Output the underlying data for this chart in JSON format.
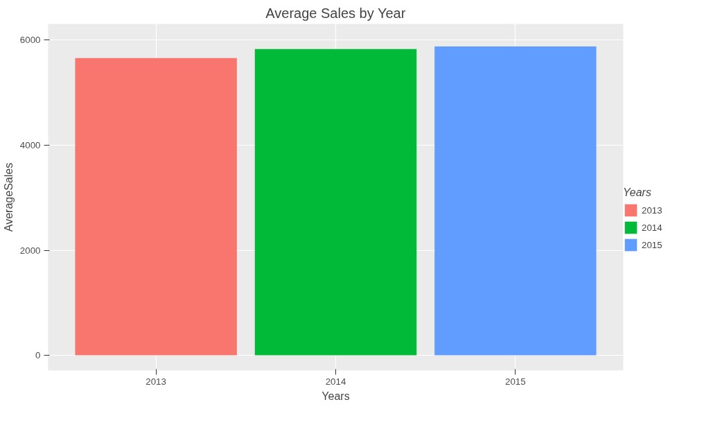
{
  "chart_data": {
    "type": "bar",
    "title": "Average Sales by Year",
    "xlabel": "Years",
    "ylabel": "AverageSales",
    "legend_title": "Years",
    "categories": [
      "2013",
      "2014",
      "2015"
    ],
    "series": [
      {
        "name": "2013",
        "color": "#f8766d",
        "values": [
          5660,
          null,
          null
        ]
      },
      {
        "name": "2014",
        "color": "#00ba38",
        "values": [
          null,
          5830,
          null
        ]
      },
      {
        "name": "2015",
        "color": "#619cff",
        "values": [
          null,
          null,
          5880
        ]
      }
    ],
    "ylim": [
      -290,
      6310
    ],
    "yticks": [
      0,
      2000,
      4000,
      6000
    ],
    "grid": true,
    "legend": "right"
  }
}
